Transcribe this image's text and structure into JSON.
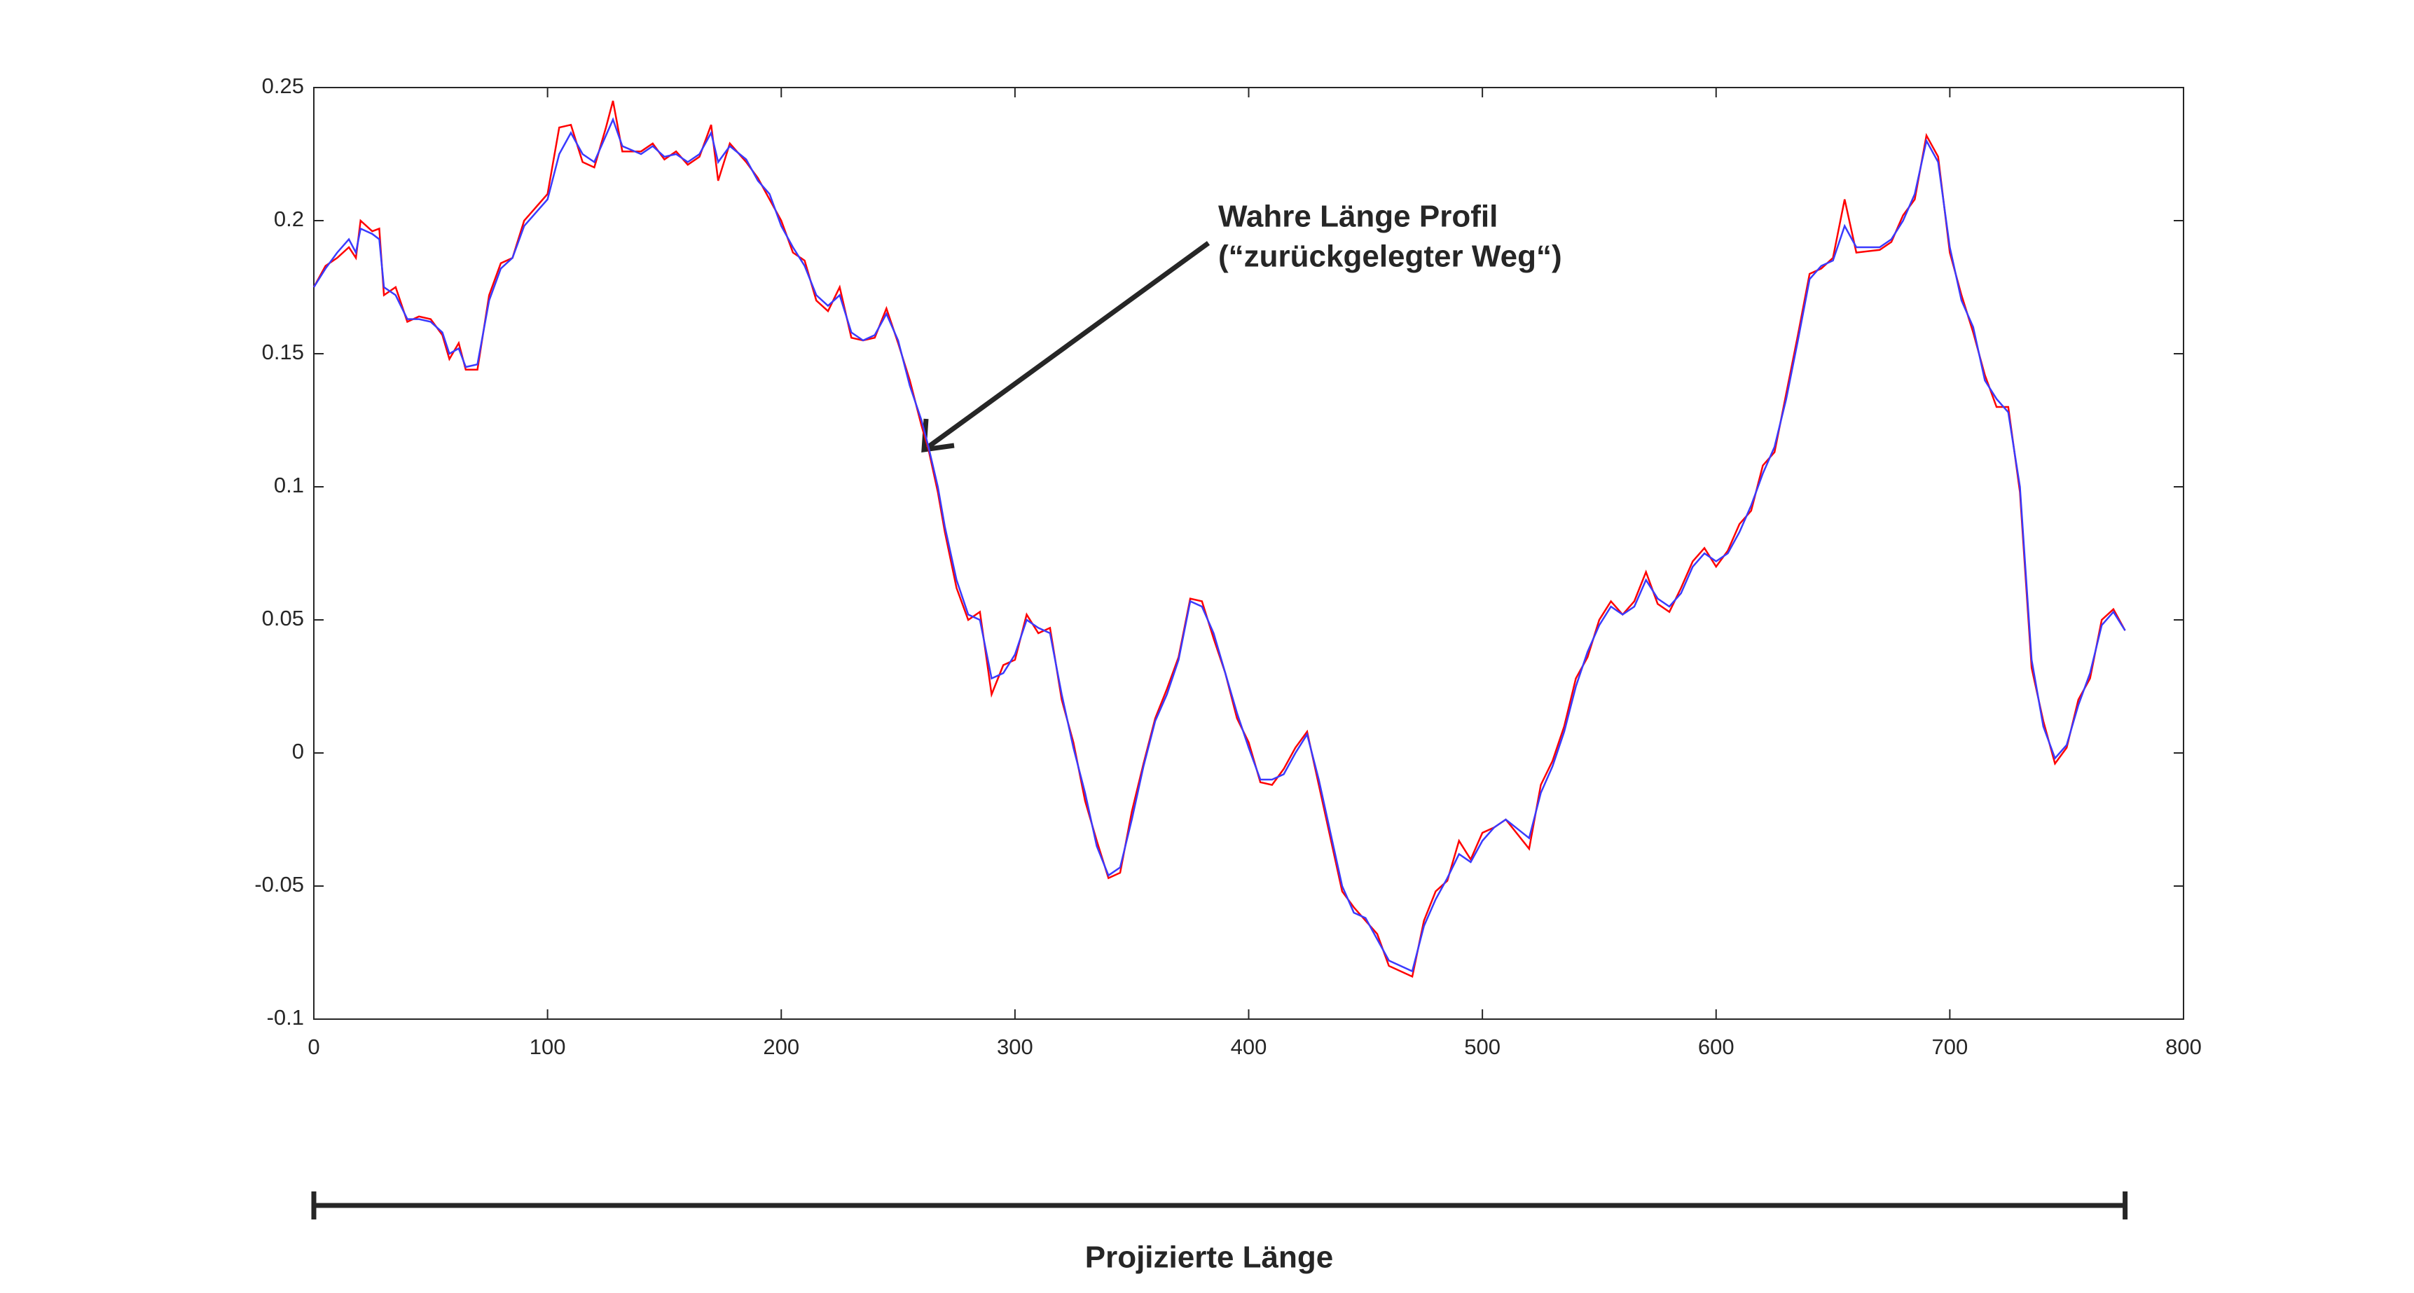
{
  "chart_data": {
    "type": "line",
    "annotation_lines": [
      "Wahre Länge Profil",
      "(“zurückgelegter Weg“)"
    ],
    "bracket_label": "Projizierte Länge",
    "x": [
      0,
      5,
      10,
      15,
      18,
      20,
      25,
      28,
      30,
      35,
      40,
      45,
      50,
      55,
      58,
      62,
      65,
      70,
      75,
      80,
      85,
      90,
      95,
      100,
      105,
      110,
      115,
      120,
      125,
      128,
      132,
      140,
      145,
      150,
      155,
      160,
      165,
      170,
      173,
      178,
      185,
      190,
      195,
      200,
      205,
      210,
      215,
      220,
      225,
      230,
      235,
      240,
      245,
      250,
      255,
      260,
      263,
      267,
      270,
      275,
      280,
      285,
      290,
      295,
      300,
      305,
      310,
      315,
      320,
      325,
      330,
      335,
      340,
      345,
      350,
      355,
      360,
      365,
      370,
      375,
      380,
      385,
      390,
      395,
      400,
      405,
      410,
      415,
      420,
      425,
      430,
      435,
      440,
      445,
      450,
      455,
      460,
      470,
      475,
      480,
      485,
      490,
      495,
      500,
      505,
      510,
      520,
      525,
      530,
      535,
      540,
      545,
      550,
      555,
      560,
      565,
      570,
      575,
      580,
      585,
      590,
      595,
      600,
      605,
      610,
      615,
      620,
      625,
      630,
      635,
      640,
      645,
      650,
      655,
      660,
      670,
      675,
      680,
      685,
      690,
      695,
      700,
      705,
      710,
      715,
      720,
      725,
      730,
      735,
      740,
      745,
      750,
      755,
      760,
      765,
      770,
      775
    ],
    "series": [
      {
        "color": "#ff0000",
        "values": [
          0.175,
          0.183,
          0.186,
          0.19,
          0.186,
          0.2,
          0.196,
          0.197,
          0.172,
          0.175,
          0.162,
          0.164,
          0.163,
          0.157,
          0.148,
          0.154,
          0.144,
          0.144,
          0.172,
          0.184,
          0.186,
          0.2,
          0.205,
          0.21,
          0.235,
          0.236,
          0.222,
          0.22,
          0.235,
          0.245,
          0.226,
          0.226,
          0.229,
          0.223,
          0.226,
          0.221,
          0.224,
          0.236,
          0.215,
          0.229,
          0.222,
          0.216,
          0.208,
          0.2,
          0.188,
          0.185,
          0.17,
          0.166,
          0.175,
          0.156,
          0.155,
          0.156,
          0.167,
          0.154,
          0.14,
          0.123,
          0.114,
          0.098,
          0.083,
          0.062,
          0.05,
          0.053,
          0.022,
          0.033,
          0.035,
          0.052,
          0.045,
          0.047,
          0.02,
          0.004,
          -0.018,
          -0.033,
          -0.047,
          -0.045,
          -0.022,
          -0.004,
          0.013,
          0.024,
          0.036,
          0.058,
          0.057,
          0.043,
          0.03,
          0.013,
          0.004,
          -0.011,
          -0.012,
          -0.006,
          0.002,
          0.008,
          -0.012,
          -0.032,
          -0.052,
          -0.058,
          -0.063,
          -0.068,
          -0.08,
          -0.084,
          -0.063,
          -0.052,
          -0.048,
          -0.033,
          -0.04,
          -0.03,
          -0.028,
          -0.025,
          -0.036,
          -0.012,
          -0.003,
          0.01,
          0.028,
          0.036,
          0.05,
          0.057,
          0.052,
          0.057,
          0.068,
          0.056,
          0.053,
          0.062,
          0.072,
          0.077,
          0.07,
          0.076,
          0.086,
          0.091,
          0.108,
          0.113,
          0.135,
          0.157,
          0.18,
          0.182,
          0.186,
          0.208,
          0.188,
          0.189,
          0.192,
          0.202,
          0.208,
          0.232,
          0.224,
          0.188,
          0.172,
          0.158,
          0.142,
          0.13,
          0.13,
          0.098,
          0.032,
          0.012,
          -0.004,
          0.002,
          0.02,
          0.028,
          0.05,
          0.054,
          0.046
        ]
      },
      {
        "color": "#3a3aff",
        "values": [
          0.175,
          0.182,
          0.188,
          0.193,
          0.188,
          0.197,
          0.195,
          0.193,
          0.175,
          0.172,
          0.163,
          0.163,
          0.162,
          0.158,
          0.15,
          0.152,
          0.145,
          0.146,
          0.17,
          0.182,
          0.186,
          0.198,
          0.203,
          0.208,
          0.225,
          0.233,
          0.225,
          0.222,
          0.232,
          0.238,
          0.228,
          0.225,
          0.228,
          0.224,
          0.225,
          0.222,
          0.225,
          0.233,
          0.222,
          0.228,
          0.223,
          0.215,
          0.21,
          0.198,
          0.19,
          0.183,
          0.172,
          0.168,
          0.172,
          0.158,
          0.155,
          0.157,
          0.165,
          0.155,
          0.138,
          0.125,
          0.115,
          0.1,
          0.085,
          0.065,
          0.052,
          0.05,
          0.028,
          0.03,
          0.037,
          0.05,
          0.047,
          0.045,
          0.022,
          0.002,
          -0.015,
          -0.035,
          -0.046,
          -0.043,
          -0.025,
          -0.005,
          0.012,
          0.022,
          0.035,
          0.057,
          0.055,
          0.045,
          0.03,
          0.015,
          0.002,
          -0.01,
          -0.01,
          -0.008,
          0.0,
          0.007,
          -0.01,
          -0.03,
          -0.05,
          -0.06,
          -0.062,
          -0.07,
          -0.078,
          -0.082,
          -0.065,
          -0.055,
          -0.047,
          -0.038,
          -0.041,
          -0.033,
          -0.028,
          -0.025,
          -0.032,
          -0.015,
          -0.005,
          0.008,
          0.025,
          0.038,
          0.048,
          0.055,
          0.052,
          0.055,
          0.065,
          0.058,
          0.055,
          0.06,
          0.07,
          0.075,
          0.072,
          0.075,
          0.083,
          0.093,
          0.105,
          0.115,
          0.133,
          0.155,
          0.178,
          0.183,
          0.185,
          0.198,
          0.19,
          0.19,
          0.193,
          0.2,
          0.21,
          0.23,
          0.222,
          0.19,
          0.17,
          0.16,
          0.14,
          0.133,
          0.128,
          0.1,
          0.035,
          0.01,
          -0.002,
          0.003,
          0.018,
          0.03,
          0.048,
          0.053,
          0.046
        ]
      }
    ],
    "xlim": [
      0,
      800
    ],
    "xticks": [
      0,
      100,
      200,
      300,
      400,
      500,
      600,
      700,
      800
    ],
    "ylim": [
      -0.1,
      0.25
    ],
    "yticks": [
      -0.1,
      -0.05,
      0,
      0.05,
      0.1,
      0.15,
      0.2,
      0.25
    ]
  }
}
